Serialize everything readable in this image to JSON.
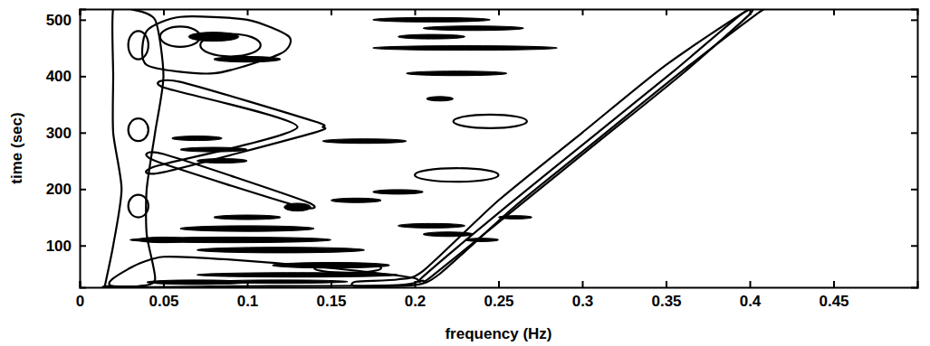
{
  "chart_data": {
    "type": "contour",
    "x_label": "frequency (Hz)",
    "y_label": "time (sec)",
    "xlim": [
      0,
      0.5
    ],
    "ylim": [
      26,
      519
    ],
    "xticks": [
      0,
      0.05,
      0.1,
      0.15,
      0.2,
      0.25,
      0.3,
      0.35,
      0.4,
      0.45
    ],
    "yticks": [
      100,
      200,
      300,
      400,
      500
    ],
    "color": "#000000",
    "lines": [
      {
        "x": [
          0.165,
          0.2,
          0.215,
          0.26,
          0.31,
          0.36,
          0.405,
          0.41,
          0.4,
          0.35,
          0.3,
          0.25,
          0.205,
          0.19,
          0.165
        ],
        "y": [
          28,
          30,
          50,
          170,
          290,
          410,
          512,
          519,
          519,
          420,
          300,
          180,
          55,
          40,
          36
        ]
      },
      {
        "x": [
          0.205,
          0.21,
          0.26,
          0.31,
          0.36,
          0.4,
          0.395,
          0.355,
          0.305,
          0.255,
          0.205
        ],
        "y": [
          38,
          45,
          165,
          285,
          405,
          510,
          510,
          410,
          290,
          170,
          45
        ]
      },
      {
        "x": [
          0.015,
          0.02,
          0.025,
          0.02,
          0.02,
          0.02,
          0.03,
          0.045,
          0.05,
          0.045,
          0.04,
          0.04,
          0.045,
          0.035,
          0.015
        ],
        "y": [
          28,
          100,
          200,
          300,
          400,
          519,
          519,
          500,
          400,
          300,
          200,
          120,
          40,
          28,
          28
        ]
      },
      {
        "x": [
          0.045,
          0.13,
          0.135,
          0.05
        ],
        "y": [
          250,
          170,
          178,
          262
        ]
      },
      {
        "x": [
          0.05,
          0.14,
          0.145,
          0.14,
          0.06,
          0.05,
          0.13,
          0.045
        ],
        "y": [
          230,
          300,
          310,
          320,
          390,
          380,
          310,
          240
        ]
      },
      {
        "x": [
          0.04,
          0.08,
          0.12,
          0.125,
          0.1,
          0.06,
          0.04
        ],
        "y": [
          420,
          405,
          440,
          470,
          500,
          505,
          480
        ]
      },
      {
        "x": [
          0.02,
          0.1,
          0.19,
          0.2,
          0.15,
          0.09,
          0.05,
          0.03
        ],
        "y": [
          28,
          28,
          30,
          42,
          60,
          75,
          80,
          60
        ]
      }
    ],
    "ellipses": [
      {
        "x": 0.035,
        "y": 170,
        "rx": 0.006,
        "ry": 20
      },
      {
        "x": 0.035,
        "y": 305,
        "rx": 0.006,
        "ry": 20
      },
      {
        "x": 0.035,
        "y": 455,
        "rx": 0.006,
        "ry": 25
      },
      {
        "x": 0.225,
        "y": 225,
        "rx": 0.025,
        "ry": 12
      },
      {
        "x": 0.245,
        "y": 320,
        "rx": 0.022,
        "ry": 12
      },
      {
        "x": 0.09,
        "y": 455,
        "rx": 0.018,
        "ry": 20
      },
      {
        "x": 0.06,
        "y": 470,
        "rx": 0.012,
        "ry": 18
      },
      {
        "x": 0.16,
        "y": 60,
        "rx": 0.02,
        "ry": 8
      }
    ],
    "blobs": [
      {
        "x": 0.21,
        "y": 500,
        "rx": 0.035,
        "ry": 4
      },
      {
        "x": 0.235,
        "y": 485,
        "rx": 0.03,
        "ry": 4
      },
      {
        "x": 0.21,
        "y": 470,
        "rx": 0.02,
        "ry": 4
      },
      {
        "x": 0.23,
        "y": 450,
        "rx": 0.055,
        "ry": 4
      },
      {
        "x": 0.225,
        "y": 405,
        "rx": 0.03,
        "ry": 4
      },
      {
        "x": 0.215,
        "y": 360,
        "rx": 0.008,
        "ry": 4
      },
      {
        "x": 0.17,
        "y": 285,
        "rx": 0.025,
        "ry": 4
      },
      {
        "x": 0.19,
        "y": 195,
        "rx": 0.015,
        "ry": 4
      },
      {
        "x": 0.165,
        "y": 180,
        "rx": 0.015,
        "ry": 4
      },
      {
        "x": 0.13,
        "y": 168,
        "rx": 0.008,
        "ry": 7
      },
      {
        "x": 0.1,
        "y": 130,
        "rx": 0.04,
        "ry": 5
      },
      {
        "x": 0.09,
        "y": 110,
        "rx": 0.06,
        "ry": 5
      },
      {
        "x": 0.12,
        "y": 92,
        "rx": 0.05,
        "ry": 5
      },
      {
        "x": 0.15,
        "y": 65,
        "rx": 0.035,
        "ry": 5
      },
      {
        "x": 0.13,
        "y": 48,
        "rx": 0.06,
        "ry": 4
      },
      {
        "x": 0.07,
        "y": 35,
        "rx": 0.03,
        "ry": 4
      },
      {
        "x": 0.12,
        "y": 36,
        "rx": 0.04,
        "ry": 3
      },
      {
        "x": 0.08,
        "y": 270,
        "rx": 0.02,
        "ry": 4
      },
      {
        "x": 0.07,
        "y": 290,
        "rx": 0.015,
        "ry": 4
      },
      {
        "x": 0.085,
        "y": 250,
        "rx": 0.015,
        "ry": 4
      },
      {
        "x": 0.21,
        "y": 135,
        "rx": 0.02,
        "ry": 4
      },
      {
        "x": 0.22,
        "y": 120,
        "rx": 0.015,
        "ry": 4
      },
      {
        "x": 0.26,
        "y": 150,
        "rx": 0.01,
        "ry": 3
      },
      {
        "x": 0.24,
        "y": 110,
        "rx": 0.01,
        "ry": 3
      },
      {
        "x": 0.1,
        "y": 150,
        "rx": 0.02,
        "ry": 4
      },
      {
        "x": 0.08,
        "y": 470,
        "rx": 0.015,
        "ry": 8
      },
      {
        "x": 0.1,
        "y": 430,
        "rx": 0.02,
        "ry": 5
      },
      {
        "x": 0.05,
        "y": 110,
        "rx": 0.015,
        "ry": 5
      }
    ]
  }
}
